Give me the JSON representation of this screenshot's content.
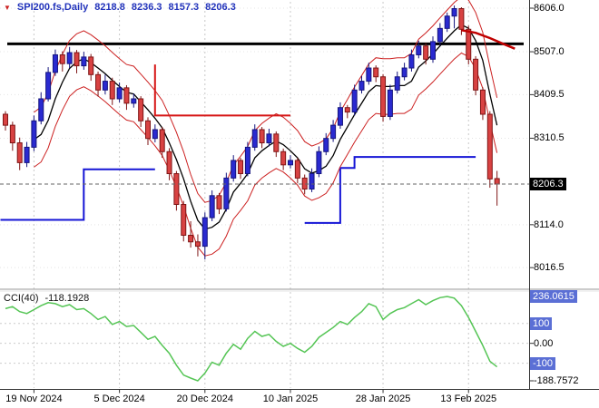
{
  "icons": {
    "dropdown": "▼"
  },
  "header": {
    "symbol": "SPI200.fs,Daily",
    "open": "8218.8",
    "high": "8236.3",
    "low": "8157.3",
    "close": "8206.3"
  },
  "indicator": {
    "label": "CCI(40)",
    "value": "-118.1928"
  },
  "colors": {
    "candle_up": "#2a2ad0",
    "candle_up_border": "#15157e",
    "candle_down": "#d84242",
    "candle_down_border": "#7e1515",
    "ma_line": "#000000",
    "envelope": "#cc2020",
    "step_blue": "#1515d6",
    "stop_red": "#d61515",
    "cci_line": "#55c555",
    "grid": "#c8c8c8",
    "level_box": "#5b6fd5",
    "title_text": "#2233bb"
  },
  "chart_data": {
    "type": "candlestick",
    "symbol": "SPI200.fs",
    "timeframe": "Daily",
    "title": "SPI200.fs,Daily 8218.8 8236.3 8157.3 8206.3",
    "price_ylim": [
      7970,
      8625
    ],
    "grid": true,
    "time_ticks": [
      {
        "bar": 4,
        "label": "19 Nov 2024"
      },
      {
        "bar": 16,
        "label": "5 Dec 2024"
      },
      {
        "bar": 28,
        "label": "20 Dec 2024"
      },
      {
        "bar": 40,
        "label": "10 Jan 2025"
      },
      {
        "bar": 53,
        "label": "28 Jan 2025"
      },
      {
        "bar": 65,
        "label": "13 Feb 2025"
      }
    ],
    "price_labels": [
      {
        "price": 8606.0,
        "label": "8606.0"
      },
      {
        "price": 8507.0,
        "label": "8507.0"
      },
      {
        "price": 8409.5,
        "label": "8409.5"
      },
      {
        "price": 8310.5,
        "label": "8310.5"
      },
      {
        "price": 8114.0,
        "label": "8114.0"
      },
      {
        "price": 8016.5,
        "label": "8016.5"
      }
    ],
    "current_price": {
      "value": 8206.3,
      "label": "8206.3"
    },
    "candles": [
      [
        8365,
        8372,
        8328,
        8340
      ],
      [
        8340,
        8348,
        8282,
        8300
      ],
      [
        8300,
        8312,
        8238,
        8255
      ],
      [
        8255,
        8302,
        8245,
        8290
      ],
      [
        8290,
        8362,
        8281,
        8350
      ],
      [
        8350,
        8415,
        8342,
        8400
      ],
      [
        8400,
        8472,
        8394,
        8460
      ],
      [
        8460,
        8512,
        8452,
        8500
      ],
      [
        8500,
        8508,
        8462,
        8480
      ],
      [
        8480,
        8518,
        8470,
        8505
      ],
      [
        8505,
        8511,
        8458,
        8475
      ],
      [
        8475,
        8507,
        8466,
        8495
      ],
      [
        8495,
        8502,
        8441,
        8455
      ],
      [
        8455,
        8462,
        8405,
        8420
      ],
      [
        8420,
        8455,
        8410,
        8440
      ],
      [
        8440,
        8448,
        8386,
        8400
      ],
      [
        8400,
        8437,
        8392,
        8425
      ],
      [
        8425,
        8431,
        8375,
        8390
      ],
      [
        8390,
        8412,
        8380,
        8400
      ],
      [
        8400,
        8406,
        8336,
        8350
      ],
      [
        8350,
        8358,
        8295,
        8310
      ],
      [
        8310,
        8342,
        8301,
        8330
      ],
      [
        8330,
        8336,
        8266,
        8280
      ],
      [
        8280,
        8288,
        8215,
        8230
      ],
      [
        8230,
        8236,
        8146,
        8160
      ],
      [
        8160,
        8168,
        8076,
        8090
      ],
      [
        8090,
        8122,
        8062,
        8075
      ],
      [
        8075,
        8092,
        8042,
        8065
      ],
      [
        8065,
        8142,
        8035,
        8130
      ],
      [
        8130,
        8192,
        8122,
        8180
      ],
      [
        8180,
        8186,
        8138,
        8150
      ],
      [
        8150,
        8232,
        8144,
        8220
      ],
      [
        8220,
        8272,
        8212,
        8260
      ],
      [
        8260,
        8266,
        8218,
        8230
      ],
      [
        8230,
        8302,
        8224,
        8290
      ],
      [
        8290,
        8342,
        8282,
        8330
      ],
      [
        8330,
        8336,
        8288,
        8300
      ],
      [
        8300,
        8332,
        8292,
        8320
      ],
      [
        8320,
        8326,
        8268,
        8280
      ],
      [
        8280,
        8287,
        8238,
        8250
      ],
      [
        8250,
        8272,
        8242,
        8260
      ],
      [
        8260,
        8266,
        8208,
        8220
      ],
      [
        8220,
        8228,
        8183,
        8195
      ],
      [
        8195,
        8242,
        8188,
        8230
      ],
      [
        8230,
        8292,
        8222,
        8280
      ],
      [
        8280,
        8322,
        8272,
        8310
      ],
      [
        8310,
        8352,
        8302,
        8340
      ],
      [
        8340,
        8392,
        8332,
        8380
      ],
      [
        8380,
        8386,
        8356,
        8370
      ],
      [
        8370,
        8432,
        8362,
        8420
      ],
      [
        8420,
        8452,
        8412,
        8440
      ],
      [
        8440,
        8482,
        8432,
        8470
      ],
      [
        8470,
        8476,
        8438,
        8450
      ],
      [
        8450,
        8456,
        8348,
        8360
      ],
      [
        8360,
        8432,
        8352,
        8420
      ],
      [
        8420,
        8462,
        8412,
        8450
      ],
      [
        8450,
        8482,
        8442,
        8470
      ],
      [
        8470,
        8512,
        8462,
        8500
      ],
      [
        8500,
        8532,
        8492,
        8520
      ],
      [
        8520,
        8526,
        8478,
        8490
      ],
      [
        8490,
        8542,
        8482,
        8530
      ],
      [
        8530,
        8572,
        8522,
        8560
      ],
      [
        8560,
        8596,
        8552,
        8588
      ],
      [
        8588,
        8612,
        8560,
        8605
      ],
      [
        8605,
        8608,
        8545,
        8558
      ],
      [
        8558,
        8566,
        8478,
        8490
      ],
      [
        8490,
        8497,
        8408,
        8420
      ],
      [
        8420,
        8426,
        8352,
        8365
      ],
      [
        8365,
        8372,
        8198,
        8218
      ],
      [
        8218.8,
        8236.3,
        8157.3,
        8206.3
      ]
    ],
    "overlays": {
      "horizontal_line_price": 8525,
      "ma_period": 5,
      "envelope_percent": 0.75,
      "blue_stop_segments": [
        [
          [
            -0.7,
            8125
          ],
          [
            11,
            8125
          ],
          [
            11,
            8240
          ],
          [
            21,
            8240
          ]
        ],
        [
          [
            42,
            8118
          ],
          [
            47,
            8118
          ],
          [
            47,
            8243
          ],
          [
            49,
            8243
          ],
          [
            49,
            8268
          ],
          [
            66,
            8268
          ]
        ]
      ],
      "red_stop_segments": [
        [
          [
            21,
            8478
          ],
          [
            21,
            8362
          ],
          [
            40,
            8362
          ]
        ]
      ],
      "red_curve": [
        [
          64,
          8556
        ],
        [
          66,
          8550
        ],
        [
          68,
          8538
        ],
        [
          70,
          8524
        ],
        [
          71.5,
          8514
        ]
      ]
    },
    "cci": {
      "period": 40,
      "current": -118.1928,
      "max": 236.0615,
      "min": -188.7572,
      "levels": [
        100,
        0,
        -100
      ],
      "axis_labels": [
        {
          "value": 236.0615,
          "label": "236.0615",
          "boxed": true
        },
        {
          "value": 100,
          "label": "100",
          "boxed": true
        },
        {
          "value": 0,
          "label": "0.00",
          "boxed": false
        },
        {
          "value": -100,
          "label": "-100",
          "boxed": true
        },
        {
          "value": -188.7572,
          "label": "-188.7572",
          "boxed": false
        }
      ],
      "values": [
        175,
        185,
        160,
        150,
        170,
        190,
        205,
        200,
        185,
        195,
        170,
        175,
        150,
        120,
        135,
        95,
        110,
        85,
        90,
        55,
        20,
        35,
        -10,
        -50,
        -110,
        -160,
        -175,
        -188.8,
        -150,
        -95,
        -110,
        -50,
        -5,
        -30,
        25,
        60,
        35,
        45,
        10,
        -15,
        0,
        -25,
        -45,
        -15,
        30,
        55,
        80,
        110,
        95,
        130,
        160,
        200,
        185,
        120,
        150,
        170,
        180,
        200,
        220,
        195,
        215,
        230,
        236.1,
        228,
        190,
        130,
        60,
        -10,
        -90,
        -118.2
      ]
    }
  }
}
